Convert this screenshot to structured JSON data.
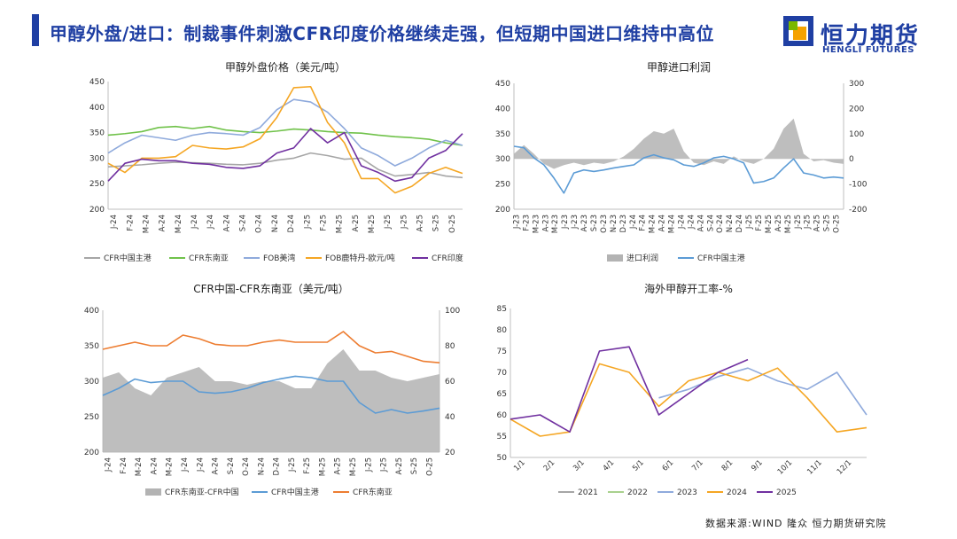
{
  "header": {
    "title": "甲醇外盘/进口：制裁事件刺激CFR印度价格继续走强，但短期中国进口维持中高位",
    "logo_cn": "恒力期货",
    "logo_en": "HENGLI FUTURES"
  },
  "footer": {
    "source": "数据来源:WIND 隆众 恒力期货研究院"
  },
  "colors": {
    "brand": "#1f3fa3",
    "logo_orange": "#f5a200",
    "logo_green": "#7ab800"
  },
  "chart_data": [
    {
      "id": "c1",
      "type": "line",
      "title": "甲醇外盘价格（美元/吨）",
      "x_ticks": [
        "J-24",
        "F-24",
        "M-24",
        "A-24",
        "M-24",
        "J-24",
        "J-24",
        "A-24",
        "S-24",
        "O-24",
        "N-24",
        "D-24",
        "J-25",
        "F-25",
        "M-25",
        "A-25",
        "M-25",
        "J-25",
        "J-25",
        "A-25",
        "S-25",
        "O-25"
      ],
      "ylim": [
        200,
        450
      ],
      "y_ticks": [
        200,
        250,
        300,
        350,
        400,
        450
      ],
      "legend_position": "bottom",
      "series": [
        {
          "name": "CFR中国主港",
          "color": "#a6a6a6",
          "values": [
            283,
            285,
            287,
            290,
            292,
            291,
            290,
            288,
            287,
            290,
            296,
            300,
            310,
            305,
            298,
            300,
            278,
            265,
            268,
            272,
            265,
            262
          ]
        },
        {
          "name": "CFR东南亚",
          "color": "#70c24a",
          "values": [
            345,
            348,
            352,
            360,
            362,
            358,
            362,
            355,
            352,
            350,
            353,
            357,
            355,
            352,
            350,
            349,
            345,
            342,
            340,
            337,
            330,
            325
          ]
        },
        {
          "name": "FOB美湾",
          "color": "#8faadc",
          "values": [
            310,
            330,
            345,
            340,
            335,
            345,
            350,
            348,
            345,
            360,
            395,
            415,
            410,
            390,
            358,
            320,
            305,
            285,
            300,
            320,
            335,
            325
          ]
        },
        {
          "name": "FOB鹿特丹-欧元/吨",
          "color": "#f5a623",
          "values": [
            290,
            272,
            300,
            300,
            303,
            325,
            320,
            318,
            322,
            338,
            380,
            438,
            440,
            370,
            330,
            260,
            260,
            232,
            245,
            270,
            282,
            270
          ]
        },
        {
          "name": "CFR印度",
          "color": "#7030a0",
          "values": [
            255,
            290,
            298,
            295,
            295,
            290,
            288,
            282,
            280,
            285,
            310,
            320,
            358,
            330,
            350,
            285,
            272,
            255,
            262,
            300,
            315,
            348
          ]
        }
      ]
    },
    {
      "id": "c2",
      "type": "line",
      "title": "甲醇进口利润",
      "x_ticks": [
        "J-23",
        "F-23",
        "M-23",
        "A-23",
        "M-23",
        "J-23",
        "J-23",
        "A-23",
        "S-23",
        "O-23",
        "N-23",
        "D-23",
        "J-24",
        "F-24",
        "M-24",
        "A-24",
        "M-24",
        "J-24",
        "J-24",
        "A-24",
        "S-24",
        "O-24",
        "N-24",
        "D-24",
        "J-25",
        "F-25",
        "M-25",
        "A-25",
        "M-25",
        "J-25",
        "J-25",
        "A-25",
        "S-25",
        "O-25"
      ],
      "ylim": [
        200,
        450
      ],
      "y_ticks": [
        200,
        250,
        300,
        350,
        400,
        450
      ],
      "y2lim": [
        -200,
        300
      ],
      "y2_ticks": [
        -200,
        -100,
        0,
        100,
        200,
        300
      ],
      "legend_position": "bottom",
      "series": [
        {
          "name": "进口利润",
          "type": "area",
          "axis": "right",
          "color": "#b3b3b3",
          "values": [
            20,
            55,
            20,
            -20,
            -40,
            -25,
            -15,
            -25,
            -15,
            -20,
            -10,
            10,
            40,
            80,
            110,
            100,
            120,
            30,
            -15,
            -25,
            -10,
            -20,
            10,
            -10,
            -20,
            0,
            40,
            120,
            160,
            20,
            -10,
            -5,
            -15,
            -20
          ]
        },
        {
          "name": "CFR中国主港",
          "type": "line",
          "axis": "left",
          "color": "#5b9bd5",
          "values": [
            325,
            322,
            302,
            288,
            262,
            232,
            272,
            278,
            275,
            278,
            282,
            285,
            288,
            302,
            308,
            302,
            298,
            288,
            285,
            292,
            302,
            305,
            300,
            292,
            252,
            255,
            262,
            282,
            300,
            272,
            268,
            262,
            264,
            262
          ]
        }
      ]
    },
    {
      "id": "c3",
      "type": "line",
      "title": "CFR中国-CFR东南亚（美元/吨）",
      "x_ticks": [
        "J-24",
        "F-24",
        "M-24",
        "A-24",
        "M-24",
        "J-24",
        "J-24",
        "A-24",
        "S-24",
        "O-24",
        "N-24",
        "D-24",
        "J-25",
        "F-25",
        "M-25",
        "A-25",
        "M-25",
        "J-25",
        "J-25",
        "A-25",
        "S-25",
        "O-25"
      ],
      "ylim": [
        200,
        400
      ],
      "y_ticks": [
        200,
        250,
        300,
        350,
        400
      ],
      "y2lim": [
        20,
        100
      ],
      "y2_ticks": [
        20,
        40,
        60,
        80,
        100
      ],
      "legend_position": "bottom",
      "series": [
        {
          "name": "CFR东南亚-CFR中国",
          "type": "area",
          "axis": "right",
          "color": "#b3b3b3",
          "values": [
            62,
            65,
            56,
            52,
            62,
            65,
            68,
            60,
            60,
            58,
            60,
            60,
            56,
            56,
            70,
            78,
            66,
            66,
            62,
            60,
            62,
            64
          ]
        },
        {
          "name": "CFR中国主港",
          "type": "line",
          "axis": "left",
          "color": "#5b9bd5",
          "values": [
            280,
            290,
            303,
            298,
            300,
            300,
            285,
            283,
            285,
            290,
            298,
            303,
            307,
            305,
            300,
            300,
            270,
            255,
            260,
            255,
            258,
            262
          ]
        },
        {
          "name": "CFR东南亚",
          "type": "line",
          "axis": "left",
          "color": "#ed7d31",
          "values": [
            345,
            350,
            355,
            350,
            350,
            365,
            360,
            352,
            350,
            350,
            355,
            358,
            355,
            355,
            355,
            370,
            350,
            340,
            342,
            335,
            328,
            326
          ]
        }
      ]
    },
    {
      "id": "c4",
      "type": "line",
      "title": "海外甲醇开工率-%",
      "x_ticks": [
        "1/1",
        "2/1",
        "3/1",
        "4/1",
        "5/1",
        "6/1",
        "7/1",
        "8/1",
        "9/1",
        "10/1",
        "11/1",
        "12/1"
      ],
      "ylim": [
        50,
        85
      ],
      "y_ticks": [
        50,
        55,
        60,
        65,
        70,
        75,
        80,
        85
      ],
      "legend_position": "bottom",
      "series": [
        {
          "name": "2021",
          "color": "#a6a6a6",
          "values": []
        },
        {
          "name": "2022",
          "color": "#a9d18e",
          "values": []
        },
        {
          "name": "2023",
          "color": "#8faadc",
          "values": [
            null,
            null,
            null,
            null,
            null,
            64,
            66,
            69,
            71,
            68,
            66,
            70,
            60
          ]
        },
        {
          "name": "2024",
          "color": "#f5a623",
          "values": [
            59,
            55,
            56,
            72,
            70,
            62,
            68,
            70,
            68,
            71,
            64,
            56,
            57
          ]
        },
        {
          "name": "2025",
          "color": "#7030a0",
          "values": [
            59,
            60,
            56,
            75,
            76,
            60,
            65,
            70,
            73,
            null,
            null,
            null,
            null
          ]
        }
      ]
    }
  ]
}
